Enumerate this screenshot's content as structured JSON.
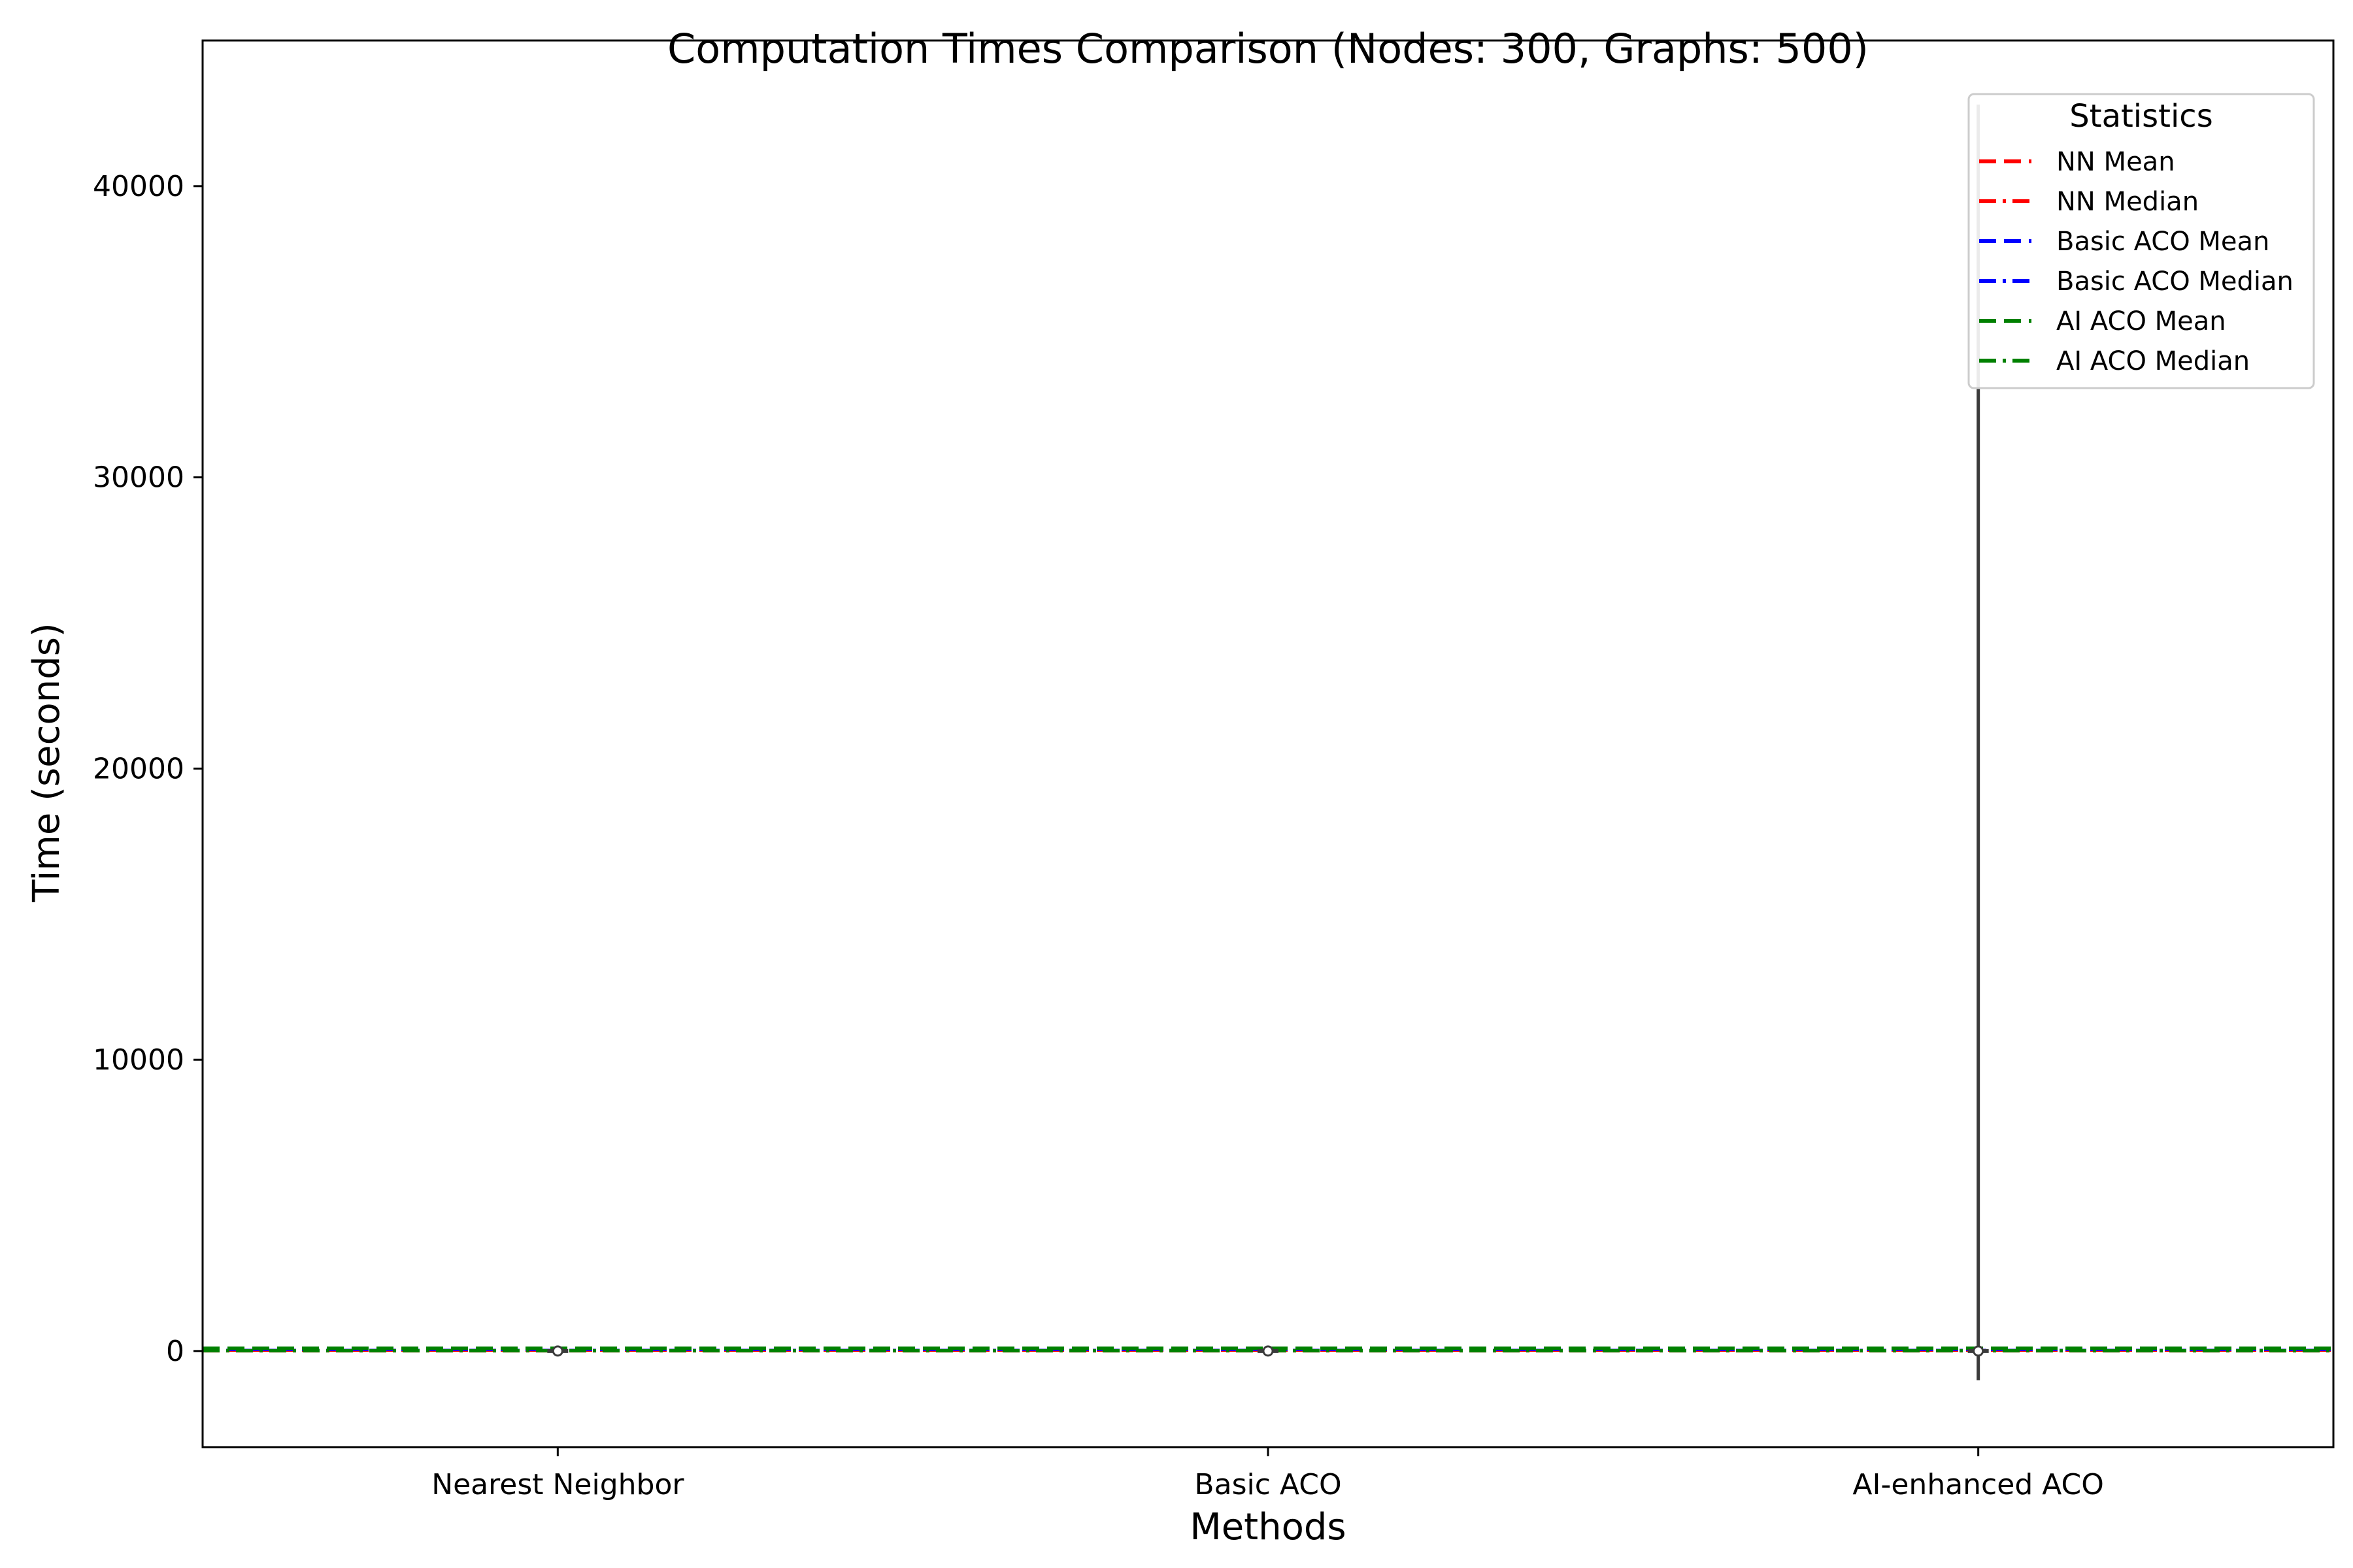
{
  "chart_data": {
    "type": "violin",
    "title": "Computation Times Comparison (Nodes: 300, Graphs: 500)",
    "xlabel": "Methods",
    "ylabel": "Time (seconds)",
    "categories": [
      "Nearest Neighbor",
      "Basic ACO",
      "AI-enhanced ACO"
    ],
    "ylim": [
      -3300,
      45000
    ],
    "yticks": [
      0,
      10000,
      20000,
      30000,
      40000
    ],
    "grid": false,
    "distributions": [
      {
        "category": "Nearest Neighbor",
        "min": 0,
        "max": 0,
        "median": 0
      },
      {
        "category": "Basic ACO",
        "min": 0,
        "max": 0,
        "median": 0
      },
      {
        "category": "AI-enhanced ACO",
        "min": -1000,
        "max": 42800,
        "median": 0
      }
    ],
    "reference_lines": [
      {
        "name": "NN Mean",
        "value": 30,
        "color": "#ff0000",
        "style": "dashed"
      },
      {
        "name": "NN Median",
        "value": 5,
        "color": "#ff0000",
        "style": "dashdot"
      },
      {
        "name": "Basic ACO Mean",
        "value": 60,
        "color": "#0000ff",
        "style": "dashed"
      },
      {
        "name": "Basic ACO Median",
        "value": 20,
        "color": "#0000ff",
        "style": "dashdot"
      },
      {
        "name": "AI ACO Mean",
        "value": 100,
        "color": "#008000",
        "style": "dashed"
      },
      {
        "name": "AI ACO Median",
        "value": 10,
        "color": "#008000",
        "style": "dashdot"
      }
    ],
    "legend": {
      "title": "Statistics",
      "position": "upper right",
      "entries": [
        "NN Mean",
        "NN Median",
        "Basic ACO Mean",
        "Basic ACO Median",
        "AI ACO Mean",
        "AI ACO Median"
      ]
    }
  }
}
